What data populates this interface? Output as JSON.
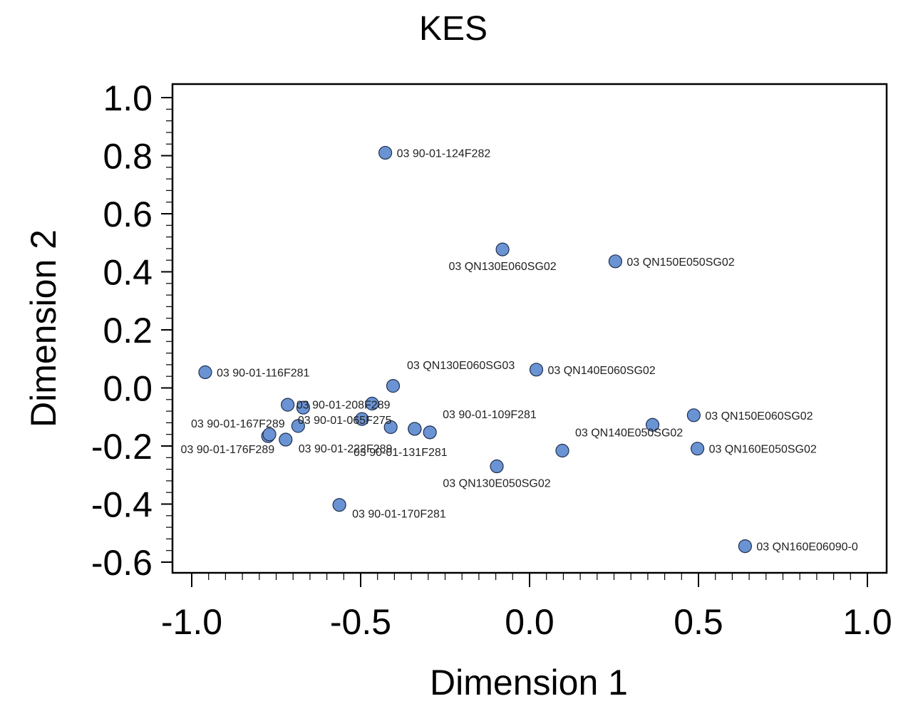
{
  "chart_data": {
    "type": "scatter",
    "title": "KES",
    "xlabel": "Dimension 1",
    "ylabel": "Dimension 2",
    "xlim": [
      -1.0,
      1.0
    ],
    "ylim": [
      -0.6,
      1.0
    ],
    "xticks": [
      -1.0,
      -0.5,
      0.0,
      0.5,
      1.0
    ],
    "xtick_labels": [
      "-1.0",
      "-0.5",
      "0.0",
      "0.5",
      "1.0"
    ],
    "yticks": [
      1.0,
      0.8,
      0.6,
      0.4,
      0.2,
      0.0,
      -0.2,
      -0.4,
      -0.6
    ],
    "ytick_labels": [
      "1.0",
      "0.8",
      "0.6",
      "0.4",
      "0.2",
      "0.0",
      "-0.2",
      "-0.4",
      "-0.6"
    ],
    "grid": false,
    "marker_color": "#6a93d3",
    "points": [
      {
        "x": -0.427,
        "y": 0.81,
        "label": "03  90-01-124F282",
        "anchor": "right"
      },
      {
        "x": -0.08,
        "y": 0.477,
        "label": "03  QN130E060SG02",
        "anchor": "below"
      },
      {
        "x": 0.254,
        "y": 0.436,
        "label": "03  QN150E050SG02",
        "anchor": "right"
      },
      {
        "x": -0.96,
        "y": 0.054,
        "label": "03  90-01-116F281",
        "anchor": "right"
      },
      {
        "x": 0.02,
        "y": 0.063,
        "label": "03  QN140E060SG02",
        "anchor": "right"
      },
      {
        "x": -0.404,
        "y": 0.007,
        "label": "03  90-01-208F289",
        "anchor": "belowleft"
      },
      {
        "x": 0.0,
        "y": 0.07,
        "label": "03  QN130E060SG03",
        "anchor": "labelonly"
      },
      {
        "x": -0.716,
        "y": -0.058,
        "label": "03  90-01-167F289",
        "anchor": "belowleft"
      },
      {
        "x": -0.67,
        "y": -0.068,
        "label": "",
        "anchor": "none"
      },
      {
        "x": -0.466,
        "y": -0.054,
        "label": "",
        "anchor": "none"
      },
      {
        "x": -0.496,
        "y": -0.107,
        "label": "03  90-01-065F275",
        "anchor": "left"
      },
      {
        "x": -0.685,
        "y": -0.131,
        "label": "",
        "anchor": "none"
      },
      {
        "x": -0.411,
        "y": -0.135,
        "label": "",
        "anchor": "none"
      },
      {
        "x": -0.34,
        "y": -0.141,
        "label": "",
        "anchor": "none"
      },
      {
        "x": -0.295,
        "y": -0.153,
        "label": "03  90-01-109F281",
        "anchor": "aboveright"
      },
      {
        "x": -0.774,
        "y": -0.166,
        "label": "03  90-01-176F289",
        "anchor": "belowleft2"
      },
      {
        "x": -0.722,
        "y": -0.178,
        "label": "03  90-01-222F289",
        "anchor": "belowright"
      },
      {
        "x": -0.77,
        "y": -0.16,
        "label": "",
        "anchor": "none"
      },
      {
        "x": -0.34,
        "y": -0.141,
        "label": "03  90-01-131F281",
        "anchor": "below2"
      },
      {
        "x": 0.364,
        "y": -0.127,
        "label": "",
        "anchor": "none"
      },
      {
        "x": 0.486,
        "y": -0.094,
        "label": "03  QN150E060SG02",
        "anchor": "right"
      },
      {
        "x": 0.097,
        "y": -0.216,
        "label": "03  QN140E050SG02",
        "anchor": "aboveright"
      },
      {
        "x": 0.497,
        "y": -0.209,
        "label": "03  QN160E050SG02",
        "anchor": "right"
      },
      {
        "x": -0.097,
        "y": -0.27,
        "label": "03  QN130E050SG02",
        "anchor": "below"
      },
      {
        "x": -0.563,
        "y": -0.403,
        "label": "03  90-01-170F281",
        "anchor": "belowright"
      },
      {
        "x": 0.638,
        "y": -0.545,
        "label": "03  QN160E06090-0",
        "anchor": "right"
      }
    ]
  }
}
